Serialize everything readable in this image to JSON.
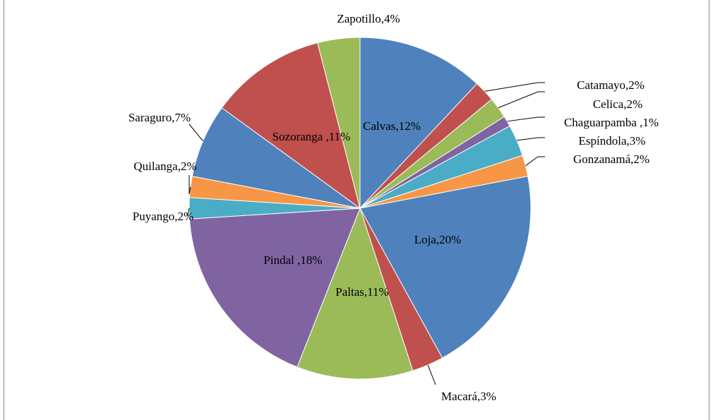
{
  "chart_data": {
    "type": "pie",
    "categories": [
      "Calvas",
      "Catamayo",
      "Celica",
      "Chaguarpamba ",
      "Espíndola",
      "Gonzanamá",
      "Loja",
      "Macará",
      "Paltas",
      "Pindal ",
      "Puyango",
      "Quilanga",
      "Saraguro",
      "Sozoranga ",
      "Zapotillo"
    ],
    "values": [
      12,
      2,
      2,
      1,
      3,
      2,
      20,
      3,
      11,
      18,
      2,
      2,
      7,
      11,
      4
    ],
    "value_labels": [
      ",12%",
      ",2%",
      ",2%",
      ",1%",
      ",3%",
      ",2%",
      ",20%",
      ",3%",
      ",11%",
      ",18%",
      ",2%",
      ",2%",
      ",7%",
      ",11%",
      ",4%"
    ],
    "colors": [
      "#4f81bd",
      "#c0504d",
      "#9bbb59",
      "#8064a2",
      "#4bacc6",
      "#f79646",
      "#4f81bd",
      "#c0504d",
      "#9bbb59",
      "#8064a2",
      "#4bacc6",
      "#f79646",
      "#4f81bd",
      "#c0504d",
      "#9bbb59"
    ]
  }
}
